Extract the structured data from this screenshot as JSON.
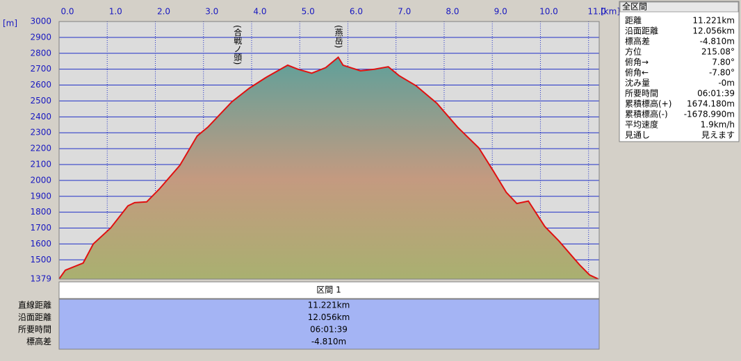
{
  "chart_data": {
    "type": "area-line",
    "x_unit": "[km]",
    "y_unit": "[m]",
    "x": [
      0,
      0.13,
      0.5,
      0.71,
      1.07,
      1.43,
      1.57,
      1.82,
      2.08,
      2.51,
      2.87,
      3.09,
      3.59,
      3.95,
      4.31,
      4.75,
      4.96,
      5.25,
      5.54,
      5.8,
      5.9,
      6.26,
      6.55,
      6.84,
      7.06,
      7.42,
      7.85,
      8.28,
      8.72,
      9.03,
      9.29,
      9.51,
      9.75,
      10.09,
      10.38,
      10.81,
      11.02,
      11.2
    ],
    "series": [
      {
        "color": "#e01010",
        "values": [
          1380,
          1435,
          1480,
          1600,
          1700,
          1840,
          1860,
          1865,
          1945,
          2095,
          2280,
          2335,
          2495,
          2580,
          2650,
          2725,
          2700,
          2675,
          2710,
          2775,
          2725,
          2690,
          2700,
          2715,
          2660,
          2595,
          2485,
          2335,
          2205,
          2055,
          1925,
          1855,
          1870,
          1710,
          1620,
          1470,
          1405,
          1380
        ]
      }
    ],
    "xlim": [
      0,
      11.221
    ],
    "ylim": [
      1379,
      3000
    ],
    "xticks": [
      {
        "value": 0,
        "label": "0.0"
      },
      {
        "value": 1,
        "label": "1.0"
      },
      {
        "value": 2,
        "label": "2.0"
      },
      {
        "value": 3,
        "label": "3.0"
      },
      {
        "value": 4,
        "label": "4.0"
      },
      {
        "value": 5,
        "label": "5.0"
      },
      {
        "value": 6,
        "label": "6.0"
      },
      {
        "value": 7,
        "label": "7.0"
      },
      {
        "value": 8,
        "label": "8.0"
      },
      {
        "value": 9,
        "label": "9.0"
      },
      {
        "value": 10,
        "label": "10.0"
      },
      {
        "value": 11,
        "label": "11.0"
      }
    ],
    "yticks": [
      1379,
      1500,
      1600,
      1700,
      1800,
      1900,
      2000,
      2100,
      2200,
      2300,
      2400,
      2500,
      2600,
      2700,
      2800,
      2900,
      3000
    ],
    "grid": true,
    "annotations": [
      {
        "text": "(合戦ノ頭)",
        "x": 3.7
      },
      {
        "text": "(燕岳)",
        "x": 5.8
      }
    ]
  },
  "section_table": {
    "header": "区間 1",
    "rows": [
      [
        "直線距離",
        "11.221km"
      ],
      [
        "沿面距離",
        "12.056km"
      ],
      [
        "所要時間",
        "06:01:39"
      ],
      [
        "標高差",
        "-4.810m"
      ]
    ]
  },
  "side_panel": {
    "title": "全区間",
    "rows": [
      [
        "距離",
        "11.221km"
      ],
      [
        "沿面距離",
        "12.056km"
      ],
      [
        "標高差",
        "-4.810m"
      ],
      [
        "方位",
        "215.08°"
      ],
      [
        "俯角→",
        "7.80°"
      ],
      [
        "俯角←",
        "-7.80°"
      ],
      [
        "沈み量",
        "-0m"
      ],
      [
        "所要時間",
        "06:01:39"
      ],
      [
        "累積標高(+)",
        "1674.180m"
      ],
      [
        "累積標高(-)",
        "-1678.990m"
      ],
      [
        "平均速度",
        "1.9km/h"
      ],
      [
        "見通し",
        "見えます"
      ]
    ]
  }
}
